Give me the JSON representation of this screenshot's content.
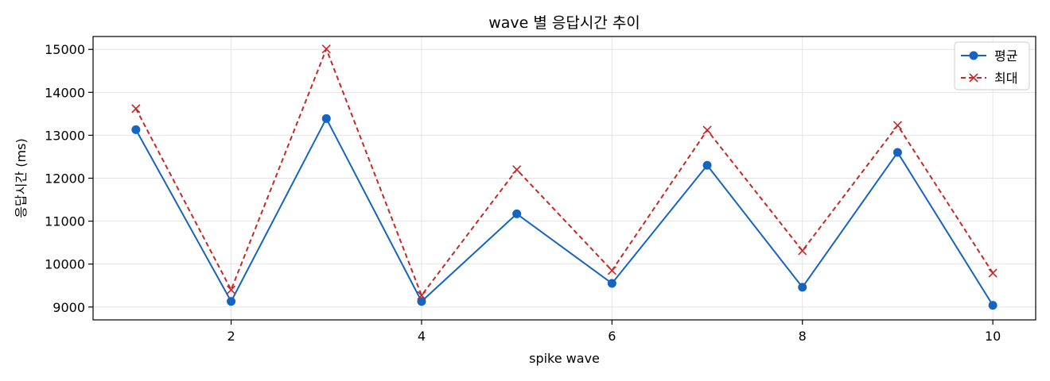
{
  "chart_data": {
    "type": "line",
    "title": "wave 별 응답시간 추이",
    "xlabel": "spike wave",
    "ylabel": "응답시간 (ms)",
    "x": [
      1,
      2,
      3,
      4,
      5,
      6,
      7,
      8,
      9,
      10
    ],
    "xlim": [
      0.55,
      10.45
    ],
    "ylim": [
      8700,
      15300
    ],
    "xticks": [
      2,
      4,
      6,
      8,
      10
    ],
    "yticks": [
      9000,
      10000,
      11000,
      12000,
      13000,
      14000,
      15000
    ],
    "grid": true,
    "legend_position": "top-right",
    "series": [
      {
        "name": "평균",
        "color": "#1565c0",
        "marker": "circle",
        "line_style": "solid",
        "values": [
          13130,
          9130,
          13390,
          9130,
          11170,
          9550,
          12300,
          9460,
          12600,
          9040
        ]
      },
      {
        "name": "최대",
        "color": "#c62828",
        "marker": "x",
        "line_style": "dashed",
        "values": [
          13620,
          9400,
          15010,
          9270,
          12200,
          9850,
          13120,
          10310,
          13230,
          9790
        ]
      }
    ]
  }
}
